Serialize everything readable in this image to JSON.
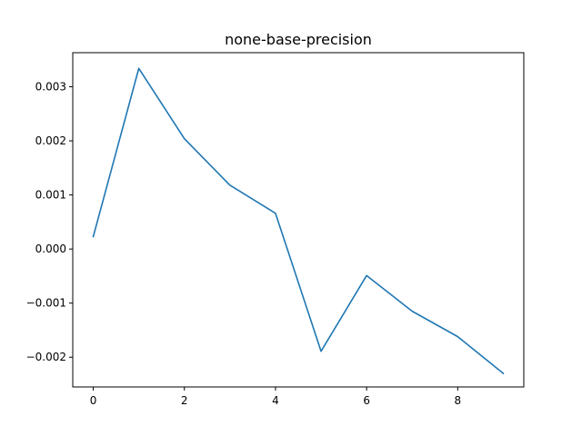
{
  "chart_data": {
    "type": "line",
    "title": "none-base-precision",
    "xlabel": "",
    "ylabel": "",
    "xlim": [
      -0.45,
      9.45
    ],
    "ylim": [
      -0.00255,
      0.00363
    ],
    "grid": false,
    "x_ticks": [
      0,
      2,
      4,
      6,
      8
    ],
    "x_tick_labels": [
      "0",
      "2",
      "4",
      "6",
      "8"
    ],
    "y_ticks": [
      0.003,
      0.002,
      0.001,
      0.0,
      -0.001,
      -0.002
    ],
    "y_tick_labels": [
      "0.003",
      "0.002",
      "0.001",
      "0.000",
      "−0.001",
      "−0.002"
    ],
    "series": [
      {
        "color": "#1f77b4",
        "x": [
          0,
          1,
          2,
          3,
          4,
          5,
          6,
          7,
          8,
          9
        ],
        "values": [
          0.00023,
          0.00334,
          0.00204,
          0.00118,
          0.00066,
          -0.00189,
          -0.00049,
          -0.00115,
          -0.00162,
          -0.0023
        ]
      }
    ]
  }
}
